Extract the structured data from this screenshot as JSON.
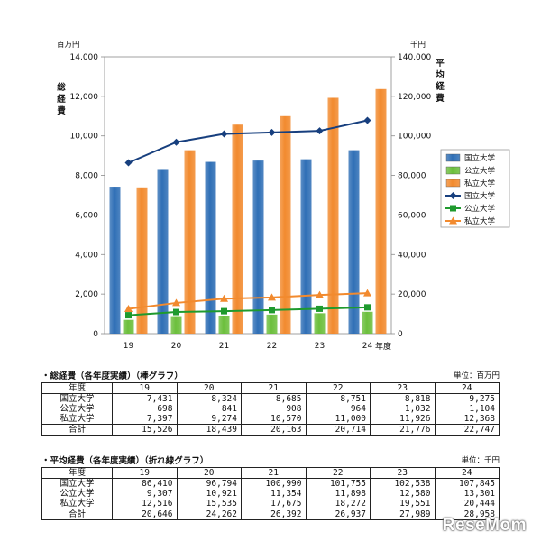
{
  "chart_data": {
    "type": "bar",
    "categories": [
      "19",
      "20",
      "21",
      "22",
      "23",
      "24"
    ],
    "x_unit": "年度",
    "left_axis": {
      "unit": "百万円",
      "label": "総経費",
      "ylim": [
        0,
        14000
      ],
      "ticks": [
        "0",
        "2,000",
        "4,000",
        "6,000",
        "8,000",
        "10,000",
        "12,000",
        "14,000"
      ]
    },
    "right_axis": {
      "unit": "千円",
      "label": "平均経費",
      "ylim": [
        0,
        140000
      ],
      "ticks": [
        "0",
        "20,000",
        "40,000",
        "60,000",
        "80,000",
        "100,000",
        "120,000",
        "140,000"
      ]
    },
    "bar_series": [
      {
        "name": "国立大学",
        "color": "#2f6fb6",
        "values": [
          7431,
          8324,
          8685,
          8751,
          8818,
          9275
        ]
      },
      {
        "name": "公立大学",
        "color": "#6cbf3c",
        "values": [
          698,
          841,
          908,
          964,
          1032,
          1104
        ]
      },
      {
        "name": "私立大学",
        "color": "#f28a2e",
        "values": [
          7397,
          9274,
          10570,
          11000,
          11926,
          12368
        ]
      }
    ],
    "line_series": [
      {
        "name": "国立大学",
        "color": "#173f7e",
        "marker": "diamond",
        "values": [
          86410,
          96794,
          100990,
          101755,
          102538,
          107845
        ]
      },
      {
        "name": "公立大学",
        "color": "#1f9a2e",
        "marker": "square",
        "values": [
          9307,
          10921,
          11354,
          11898,
          12580,
          13301
        ]
      },
      {
        "name": "私立大学",
        "color": "#f28a2e",
        "marker": "triangle",
        "values": [
          12516,
          15535,
          17675,
          18272,
          19551,
          20444
        ]
      }
    ],
    "legend_position": "right",
    "grid": false
  },
  "tables": [
    {
      "title": "・総経費（各年度実績）（棒グラフ）",
      "unit": "単位：百万円",
      "header": [
        "年度",
        "19",
        "20",
        "21",
        "22",
        "23",
        "24"
      ],
      "rows": [
        [
          "国立大学",
          "7,431",
          "8,324",
          "8,685",
          "8,751",
          "8,818",
          "9,275"
        ],
        [
          "公立大学",
          "698",
          "841",
          "908",
          "964",
          "1,032",
          "1,104"
        ],
        [
          "私立大学",
          "7,397",
          "9,274",
          "10,570",
          "11,000",
          "11,926",
          "12,368"
        ],
        [
          "合計",
          "15,526",
          "18,439",
          "20,163",
          "20,714",
          "21,776",
          "22,747"
        ]
      ]
    },
    {
      "title": "・平均経費（各年度実績）（折れ線グラフ）",
      "unit": "単位：千円",
      "header": [
        "年度",
        "19",
        "20",
        "21",
        "22",
        "23",
        "24"
      ],
      "rows": [
        [
          "国立大学",
          "86,410",
          "96,794",
          "100,990",
          "101,755",
          "102,538",
          "107,845"
        ],
        [
          "公立大学",
          "9,307",
          "10,921",
          "11,354",
          "11,898",
          "12,580",
          "13,301"
        ],
        [
          "私立大学",
          "12,516",
          "15,535",
          "17,675",
          "18,272",
          "19,551",
          "20,444"
        ],
        [
          "合計",
          "20,646",
          "24,262",
          "26,392",
          "26,937",
          "27,989",
          "28,958"
        ]
      ]
    }
  ],
  "watermark": "ReseMom"
}
